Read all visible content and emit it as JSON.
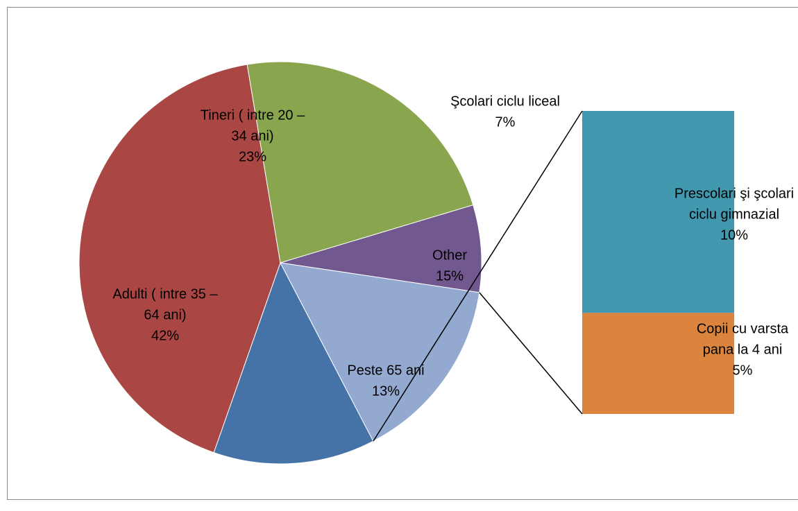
{
  "chart_data": {
    "type": "pie",
    "subtype": "bar-of-pie",
    "title": "",
    "slices": [
      {
        "name": "Peste 65 ani",
        "label_lines": [
          "Peste 65 ani",
          "13%"
        ],
        "value": 13,
        "color": "#4572A7"
      },
      {
        "name": "Adulti ( intre 35 – 64 ani)",
        "label_lines": [
          "Adulti ( intre 35 –",
          "64 ani)",
          "42%"
        ],
        "value": 42,
        "color": "#AA4643"
      },
      {
        "name": "Tineri ( intre 20 – 34 ani)",
        "label_lines": [
          "Tineri ( intre 20 –",
          "34 ani)",
          "23%"
        ],
        "value": 23,
        "color": "#89A54E"
      },
      {
        "name": "Şcolari ciclu liceal",
        "label_lines": [
          "Şcolari ciclu liceal",
          "7%"
        ],
        "value": 7,
        "color": "#71588F"
      },
      {
        "name": "Other",
        "label_lines": [
          "Other",
          "15%"
        ],
        "value": 15,
        "color": "#93A9CF"
      }
    ],
    "secondary_bar": [
      {
        "name": "Prescolari şi şcolari ciclu gimnazial",
        "label_lines": [
          "Prescolari şi şcolari",
          "ciclu gimnazial",
          "10%"
        ],
        "value": 10,
        "color": "#4198AF"
      },
      {
        "name": "Copii cu varsta pana la 4 ani",
        "label_lines": [
          "Copii cu varsta",
          "pana la 4 ani",
          "5%"
        ],
        "value": 5,
        "color": "#DB843D"
      }
    ]
  }
}
